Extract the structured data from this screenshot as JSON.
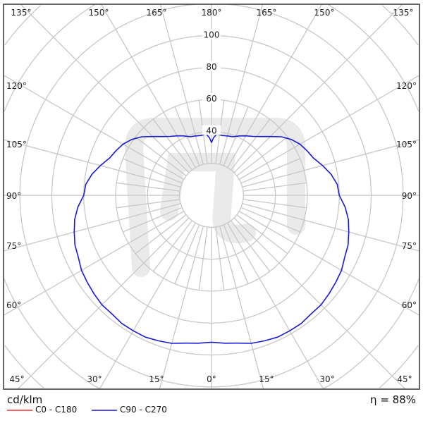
{
  "chart_data": {
    "type": "polar",
    "unit": "cd/klm",
    "efficiency_label": "η = 88%",
    "radial_ticks": [
      40,
      60,
      80,
      100
    ],
    "radial_max_drawn": 160,
    "radial_step": 20,
    "angle_labels_top": [
      "135°",
      "150°",
      "165°",
      "180°",
      "165°",
      "150°",
      "135°"
    ],
    "angle_labels_left": [
      "120°",
      "105°",
      "90°",
      "75°",
      "60°"
    ],
    "angle_labels_right": [
      "120°",
      "105°",
      "90°",
      "75°",
      "60°"
    ],
    "angle_labels_bottom": [
      "45°",
      "30°",
      "15°",
      "0°",
      "15°",
      "30°",
      "45°"
    ],
    "grid": true,
    "legend_placement": "bottom-left",
    "series": [
      {
        "name": "C0 - C180",
        "color": "#e53030",
        "gamma": [],
        "values": []
      },
      {
        "name": "C90 - C270",
        "color": "#1a1ad0",
        "gamma": [
          0,
          5,
          10,
          15,
          20,
          25,
          30,
          35,
          40,
          45,
          50,
          55,
          60,
          65,
          70,
          75,
          80,
          85,
          90,
          95,
          100,
          105,
          110,
          115,
          120,
          125,
          130,
          135,
          140,
          145,
          150,
          155,
          160,
          165,
          170,
          175,
          178,
          180
        ],
        "values": [
          92,
          93,
          94,
          96,
          97,
          98,
          98,
          98,
          97,
          97,
          96,
          95,
          94,
          92,
          91,
          89,
          87,
          84,
          80,
          79,
          76,
          72,
          68,
          66,
          64,
          61,
          57,
          52,
          48,
          45,
          43,
          41,
          39,
          38.5,
          38,
          38.5,
          36,
          33
        ]
      }
    ]
  }
}
